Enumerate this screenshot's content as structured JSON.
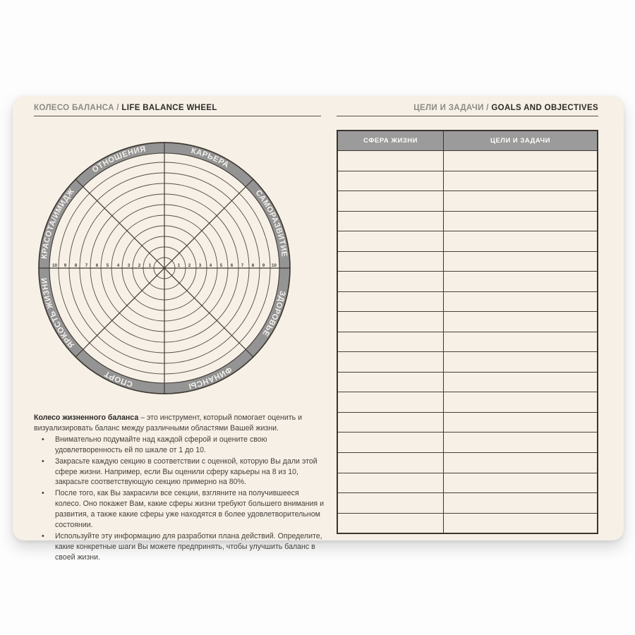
{
  "colors": {
    "card_cream": "#f6f0e7",
    "band_gray": "#949494",
    "table_header_gray": "#9b9b9b",
    "line_dark": "#3e3831",
    "ring_brown": "#554c42",
    "label_white": "#f4f1eb",
    "header_ru_gray": "#8d8a84",
    "header_en_dark": "#2e2b26"
  },
  "left_page": {
    "header": {
      "title_ru": "КОЛЕСО БАЛАНСА",
      "separator": " / ",
      "title_en": "LIFE BALANCE WHEEL"
    },
    "wheel": {
      "sectors": [
        "КАРЬЕРА",
        "САМОРАЗВИТИЕ",
        "ЗДОРОВЬЕ",
        "ФИНАНСЫ",
        "СПОРТ",
        "ЯРКОСТЬ ЖИЗНИ",
        "КРАСОТА/ИМИДЖ",
        "ОТНОШЕНИЯ"
      ],
      "rings": 10,
      "scale_min": 1,
      "scale_max": 10
    },
    "instructions": {
      "lead_bold": "Колесо жизненного баланса",
      "lead_rest": " – это инструмент, который помогает оценить и визуализировать баланс между различными областями Вашей жизни.",
      "bullets": [
        "Внимательно подумайте над каждой сферой и оцените свою удовлетворенность ей по шкале от 1 до 10.",
        "Закрасьте каждую секцию в соответствии с оценкой, которую Вы дали этой сфере жизни. Например, если Вы оценили сферу карьеры на 8 из 10, закрасьте соответствующую секцию примерно на 80%.",
        "После того, как Вы закрасили все секции, взгляните на получившееся колесо. Оно покажет Вам, какие сферы жизни требуют большего внимания и развития, а также какие сферы уже находятся в более удовлетворительном состоянии.",
        "Используйте эту информацию для разработки плана действий. Определите, какие конкретные шаги Вы можете предпринять, чтобы улучшить баланс в своей жизни."
      ]
    }
  },
  "right_page": {
    "header": {
      "title_ru": "ЦЕЛИ И ЗАДАЧИ",
      "separator": " / ",
      "title_en": "GOALS AND OBJECTIVES"
    },
    "table": {
      "columns": [
        "СФЕРА ЖИЗНИ",
        "ЦЕЛИ И ЗАДАЧИ"
      ],
      "empty_rows": 19
    }
  }
}
